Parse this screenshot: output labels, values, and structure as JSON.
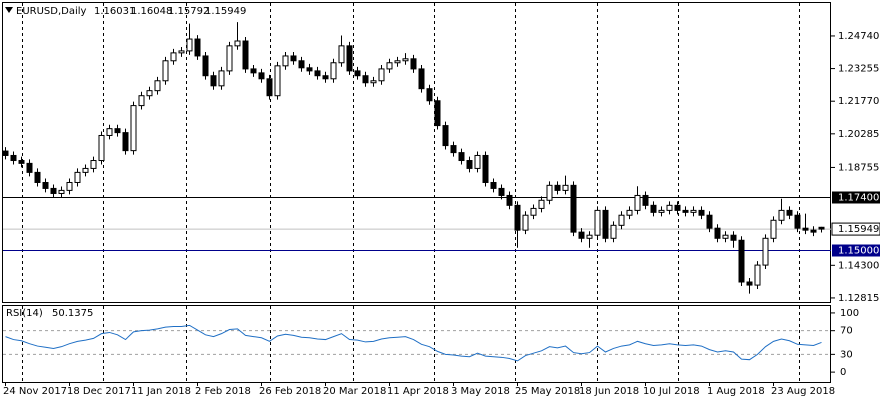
{
  "chart_data": {
    "type": "candlestick",
    "symbol": "EURUSD,Daily",
    "categories": [
      "24 Nov 2017",
      null,
      null,
      null,
      null,
      null,
      null,
      null,
      "18 Dec 2017",
      null,
      null,
      null,
      null,
      null,
      null,
      null,
      "11 Jan 2018",
      null,
      null,
      null,
      null,
      null,
      null,
      null,
      "2 Feb 2018",
      null,
      null,
      null,
      null,
      null,
      null,
      null,
      "26 Feb 2018",
      null,
      null,
      null,
      null,
      null,
      null,
      null,
      "20 Mar 2018",
      null,
      null,
      null,
      null,
      null,
      null,
      null,
      "11 Apr 2018",
      null,
      null,
      null,
      null,
      null,
      null,
      null,
      "3 May 2018",
      null,
      null,
      null,
      null,
      null,
      null,
      null,
      "25 May 2018",
      null,
      null,
      null,
      null,
      null,
      null,
      null,
      "18 Jun 2018",
      null,
      null,
      null,
      null,
      null,
      null,
      null,
      "10 Jul 2018",
      null,
      null,
      null,
      null,
      null,
      null,
      null,
      "1 Aug 2018",
      null,
      null,
      null,
      null,
      null,
      null,
      null,
      "23 Aug 2018",
      null,
      null,
      null,
      null,
      null,
      null
    ],
    "open": [
      1.195,
      1.193,
      1.1907,
      1.1894,
      1.1853,
      1.1807,
      1.178,
      1.1757,
      1.1771,
      1.1807,
      1.1853,
      1.1871,
      1.1907,
      1.2021,
      1.2052,
      1.2034,
      1.1952,
      1.2157,
      1.2202,
      1.2225,
      1.227,
      1.2361,
      1.2397,
      1.2406,
      1.246,
      1.2383,
      1.2293,
      1.2247,
      1.2315,
      1.2429,
      1.2451,
      1.2324,
      1.2306,
      1.2279,
      1.2202,
      1.2338,
      1.2383,
      1.2361,
      1.2329,
      1.2315,
      1.2293,
      1.2279,
      1.2352,
      1.2429,
      1.2315,
      1.2293,
      1.2261,
      1.227,
      1.2324,
      1.2352,
      1.2361,
      1.237,
      1.2324,
      1.2234,
      1.2179,
      1.2066,
      1.1975,
      1.1943,
      1.1907,
      1.1871,
      1.193,
      1.1807,
      1.178,
      1.1748,
      1.1703,
      1.159,
      1.1658,
      1.1689,
      1.1726,
      1.1794,
      1.1771,
      1.1794,
      1.1581,
      1.1553,
      1.1567,
      1.168,
      1.1553,
      1.1612,
      1.1658,
      1.168,
      1.1748,
      1.1703,
      1.1671,
      1.168,
      1.1703,
      1.168,
      1.1671,
      1.168,
      1.1658,
      1.1599,
      1.1553,
      1.1567,
      1.1544,
      1.1354,
      1.134,
      1.1431,
      1.1553,
      1.1635,
      1.168,
      1.1658,
      1.1599,
      1.159,
      1.16031
    ],
    "high": [
      1.1968,
      1.1948,
      1.1925,
      1.1912,
      1.1871,
      1.1825,
      1.1798,
      1.1789,
      1.1825,
      1.1871,
      1.1889,
      1.1925,
      1.2039,
      1.207,
      1.207,
      1.2052,
      1.2175,
      1.222,
      1.2243,
      1.2288,
      1.2379,
      1.2415,
      1.2424,
      1.253,
      1.2478,
      1.2401,
      1.2311,
      1.2333,
      1.2447,
      1.2537,
      1.2469,
      1.2342,
      1.2324,
      1.2297,
      1.2356,
      1.2401,
      1.2401,
      1.2379,
      1.2347,
      1.2333,
      1.2311,
      1.237,
      1.2476,
      1.2447,
      1.2333,
      1.2311,
      1.2288,
      1.2342,
      1.237,
      1.2379,
      1.2396,
      1.2388,
      1.2342,
      1.2252,
      1.2197,
      1.2084,
      1.1993,
      1.1961,
      1.1925,
      1.1948,
      1.1948,
      1.1825,
      1.1798,
      1.1766,
      1.1721,
      1.1676,
      1.1707,
      1.1744,
      1.1812,
      1.1812,
      1.1838,
      1.1812,
      1.1599,
      1.1585,
      1.1698,
      1.1698,
      1.163,
      1.1676,
      1.1698,
      1.179,
      1.1766,
      1.1721,
      1.1698,
      1.1721,
      1.1721,
      1.1698,
      1.1698,
      1.1698,
      1.1676,
      1.1617,
      1.1585,
      1.1585,
      1.1562,
      1.1372,
      1.1449,
      1.1571,
      1.1653,
      1.1733,
      1.1698,
      1.1676,
      1.1665,
      1.1608,
      1.16048
    ],
    "low": [
      1.1912,
      1.1889,
      1.1876,
      1.1835,
      1.1789,
      1.1762,
      1.1739,
      1.1739,
      1.1753,
      1.1789,
      1.1835,
      1.1853,
      1.1889,
      1.2003,
      1.2016,
      1.1934,
      1.1934,
      1.2139,
      1.2184,
      1.2207,
      1.2252,
      1.2343,
      1.2379,
      1.2388,
      1.2365,
      1.2275,
      1.2229,
      1.2229,
      1.2297,
      1.2411,
      1.2306,
      1.2288,
      1.2261,
      1.2184,
      1.2184,
      1.232,
      1.2343,
      1.2311,
      1.2297,
      1.2275,
      1.2261,
      1.2261,
      1.2334,
      1.2297,
      1.2275,
      1.2243,
      1.2243,
      1.2252,
      1.2306,
      1.2334,
      1.2343,
      1.2306,
      1.2216,
      1.2161,
      1.2048,
      1.1957,
      1.1925,
      1.1889,
      1.1853,
      1.1853,
      1.1789,
      1.1762,
      1.173,
      1.1685,
      1.151,
      1.1572,
      1.164,
      1.1671,
      1.1708,
      1.1753,
      1.1753,
      1.1563,
      1.1535,
      1.151,
      1.1549,
      1.1535,
      1.1535,
      1.1594,
      1.164,
      1.1662,
      1.1685,
      1.1653,
      1.1653,
      1.1662,
      1.1662,
      1.1653,
      1.1653,
      1.164,
      1.1581,
      1.1535,
      1.1535,
      1.151,
      1.1336,
      1.1301,
      1.1322,
      1.1413,
      1.1535,
      1.1617,
      1.164,
      1.1581,
      1.1572,
      1.1563,
      1.15792
    ],
    "close": [
      1.193,
      1.1907,
      1.1894,
      1.1853,
      1.1807,
      1.178,
      1.1757,
      1.1771,
      1.1807,
      1.1853,
      1.1871,
      1.1907,
      1.2021,
      1.2052,
      1.2034,
      1.1952,
      1.2157,
      1.2202,
      1.2225,
      1.227,
      1.2361,
      1.2397,
      1.2406,
      1.246,
      1.2383,
      1.2293,
      1.2247,
      1.2315,
      1.2429,
      1.2451,
      1.2324,
      1.2306,
      1.2279,
      1.2202,
      1.2338,
      1.2383,
      1.2361,
      1.2329,
      1.2315,
      1.2293,
      1.2279,
      1.2352,
      1.2429,
      1.2315,
      1.2293,
      1.2261,
      1.227,
      1.2324,
      1.2352,
      1.2361,
      1.237,
      1.2324,
      1.2234,
      1.2179,
      1.2066,
      1.1975,
      1.1943,
      1.1907,
      1.1871,
      1.193,
      1.1807,
      1.178,
      1.1748,
      1.1703,
      1.159,
      1.1658,
      1.1689,
      1.1726,
      1.1794,
      1.1771,
      1.1794,
      1.1581,
      1.1553,
      1.1567,
      1.168,
      1.1553,
      1.1612,
      1.1658,
      1.168,
      1.1748,
      1.1703,
      1.1671,
      1.168,
      1.1703,
      1.168,
      1.1671,
      1.168,
      1.1658,
      1.1599,
      1.1553,
      1.1567,
      1.1544,
      1.1354,
      1.134,
      1.1431,
      1.1553,
      1.1635,
      1.168,
      1.1658,
      1.1599,
      1.159,
      1.1581,
      1.15949
    ],
    "up_color": "#ffffff",
    "down_color": "#000000",
    "ylim": [
      1.1263,
      1.2624
    ],
    "yticks": [
      {
        "value": 1.2474,
        "label": "1.24740"
      },
      1.23255,
      {
        "value": 1.2177,
        "label": "1.21770"
      },
      1.20285,
      1.18755,
      {
        "value": 1.143,
        "label": "1.14300"
      },
      1.12815
    ],
    "levels": [
      {
        "value": 1.174,
        "label": "1.17400",
        "color": "#000000"
      },
      {
        "value": 1.15,
        "label": "1.15000",
        "color": "#00008b"
      }
    ],
    "indicator": {
      "type": "line",
      "name": "RSI(14)",
      "color": "#1f6fc5",
      "values": [
        60,
        55,
        53,
        48,
        44,
        42,
        40,
        43,
        48,
        52,
        54,
        57,
        65,
        67,
        63,
        55,
        68,
        70,
        71,
        73,
        76,
        77,
        77,
        79,
        71,
        63,
        60,
        65,
        72,
        73,
        62,
        60,
        58,
        52,
        61,
        64,
        62,
        59,
        58,
        56,
        55,
        60,
        65,
        55,
        54,
        51,
        52,
        56,
        58,
        59,
        60,
        55,
        47,
        43,
        35,
        30,
        29,
        27,
        26,
        32,
        27,
        26,
        25,
        23,
        19,
        28,
        32,
        36,
        43,
        41,
        44,
        33,
        31,
        33,
        44,
        34,
        40,
        44,
        46,
        52,
        48,
        45,
        46,
        48,
        46,
        45,
        46,
        44,
        38,
        34,
        36,
        34,
        22,
        21,
        30,
        43,
        52,
        56,
        53,
        47,
        46,
        45,
        50.1375
      ],
      "ylim": [
        -16.7,
        111.7
      ],
      "yticks": [
        100,
        70,
        30,
        0
      ],
      "levels": [
        70,
        30
      ]
    }
  }
}
